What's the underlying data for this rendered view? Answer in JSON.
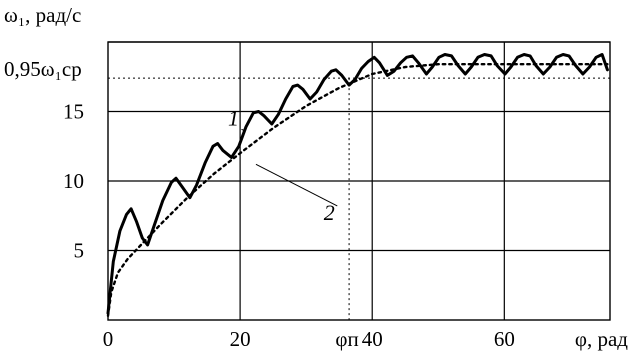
{
  "chart_data": {
    "type": "line",
    "ylabel": "ω₁, рад/с",
    "xlabel": "φ, рад",
    "xlim": [
      0,
      76
    ],
    "ylim": [
      0,
      20
    ],
    "x_ticks": [
      {
        "value": 0,
        "label": "0"
      },
      {
        "value": 20,
        "label": "20"
      },
      {
        "value": 40,
        "label": "40"
      },
      {
        "value": 60,
        "label": "60"
      }
    ],
    "y_ticks": [
      {
        "value": 5,
        "label": "5"
      },
      {
        "value": 10,
        "label": "10"
      },
      {
        "value": 15,
        "label": "15"
      }
    ],
    "grid": true,
    "reference": {
      "y_value": 17.4,
      "y_label": "0,95ω₁ср",
      "x_value": 36.5,
      "x_label": "φп"
    },
    "series": [
      {
        "name": "1",
        "style": "solid",
        "x": [
          0,
          0.8,
          1.8,
          2.8,
          3.5,
          4.3,
          5.2,
          6.0,
          7.0,
          8.3,
          9.6,
          10.3,
          11.2,
          12.4,
          13.4,
          14.7,
          15.9,
          16.6,
          17.4,
          18.7,
          19.8,
          20.9,
          22.0,
          22.8,
          23.6,
          24.8,
          25.8,
          26.9,
          28.0,
          28.7,
          29.5,
          30.6,
          31.6,
          32.7,
          33.8,
          34.5,
          35.4,
          36.5,
          37.4,
          38.4,
          39.4,
          40.3,
          41.1,
          42.3,
          43.3,
          44.3,
          45.2,
          46.1,
          47.0,
          48.2,
          49.1,
          50.1,
          51.0,
          52.0,
          53.0,
          54.1,
          55.0,
          56.0,
          57.0,
          58.0,
          58.9,
          60.1,
          61.0,
          62.0,
          63.0,
          63.9,
          64.8,
          65.9,
          66.9,
          67.9,
          68.9,
          69.8,
          70.8,
          71.9,
          72.9,
          73.9,
          74.8,
          75.6
        ],
        "y": [
          0.5,
          4.2,
          6.4,
          7.6,
          8.0,
          7.1,
          5.9,
          5.4,
          6.8,
          8.6,
          9.9,
          10.2,
          9.6,
          8.8,
          9.7,
          11.3,
          12.5,
          12.7,
          12.2,
          11.7,
          12.5,
          13.9,
          14.9,
          15.0,
          14.7,
          14.1,
          14.8,
          15.9,
          16.8,
          16.9,
          16.6,
          15.9,
          16.4,
          17.3,
          17.9,
          18.0,
          17.6,
          16.9,
          17.3,
          18.1,
          18.6,
          18.9,
          18.5,
          17.6,
          17.9,
          18.5,
          18.9,
          19.0,
          18.5,
          17.7,
          18.2,
          18.9,
          19.1,
          19.0,
          18.3,
          17.7,
          18.2,
          18.9,
          19.1,
          19.0,
          18.3,
          17.7,
          18.2,
          18.9,
          19.1,
          19.0,
          18.3,
          17.7,
          18.2,
          18.9,
          19.1,
          19.0,
          18.3,
          17.7,
          18.2,
          18.9,
          19.1,
          18.0
        ]
      },
      {
        "name": "2",
        "style": "dotted",
        "x": [
          0,
          0.5,
          1.5,
          3.0,
          5.0,
          8.0,
          12.0,
          16.0,
          20.0,
          25.0,
          30.0,
          35.0,
          40.0,
          45.0,
          50.0,
          55.0,
          60.0,
          65.0,
          70.0,
          75.6
        ],
        "y": [
          0.3,
          2.0,
          3.4,
          4.4,
          5.4,
          6.9,
          8.8,
          10.5,
          12.0,
          13.8,
          15.4,
          16.7,
          17.7,
          18.2,
          18.4,
          18.4,
          18.4,
          18.4,
          18.4,
          18.4
        ]
      }
    ],
    "annotations": [
      {
        "text": "1",
        "x": 19.0,
        "y": 14.0,
        "points_to": {
          "x": 20.8,
          "y": 13.6
        }
      },
      {
        "text": "2",
        "x": 33.5,
        "y": 7.2,
        "points_to": {
          "x": 22.4,
          "y": 11.2
        }
      }
    ]
  }
}
